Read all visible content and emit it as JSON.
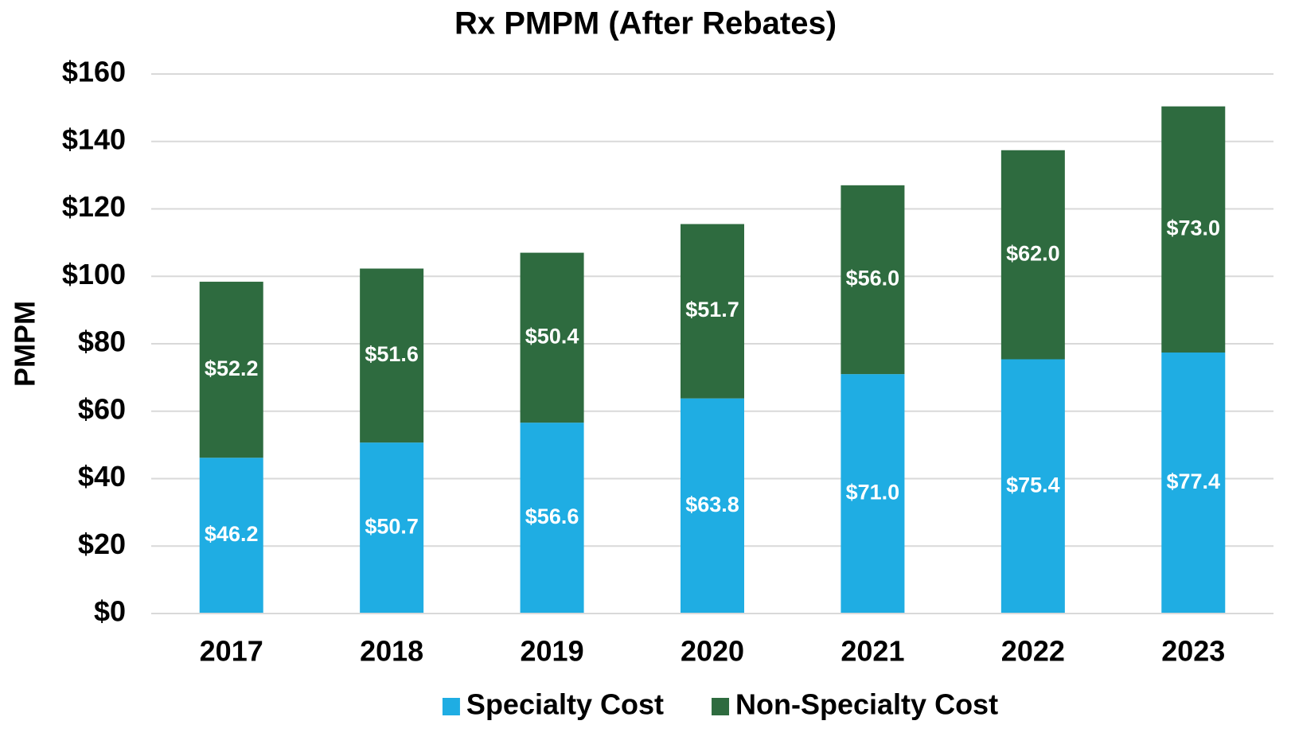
{
  "chart_data": {
    "type": "stacked_bar",
    "title": "Rx PMPM (After Rebates)",
    "ylabel": "PMPM",
    "categories": [
      "2017",
      "2018",
      "2019",
      "2020",
      "2021",
      "2022",
      "2023"
    ],
    "series": [
      {
        "name": "Specialty Cost",
        "color": "#1fade3",
        "values": [
          46.2,
          50.7,
          56.6,
          63.8,
          71.0,
          75.4,
          77.4
        ],
        "value_labels": [
          "$46.2",
          "$50.7",
          "$56.6",
          "$63.8",
          "$71.0",
          "$75.4",
          "$77.4"
        ]
      },
      {
        "name": "Non-Specialty Cost",
        "color": "#2e6b3f",
        "values": [
          52.2,
          51.6,
          50.4,
          51.7,
          56.0,
          62.0,
          73.0
        ],
        "value_labels": [
          "$52.2",
          "$51.6",
          "$50.4",
          "$51.7",
          "$56.0",
          "$62.0",
          "$73.0"
        ]
      }
    ],
    "ylim": [
      0,
      160
    ],
    "yticks": [
      {
        "value": 0,
        "label": "$0"
      },
      {
        "value": 20,
        "label": "$20"
      },
      {
        "value": 40,
        "label": "$40"
      },
      {
        "value": 60,
        "label": "$60"
      },
      {
        "value": 80,
        "label": "$80"
      },
      {
        "value": 100,
        "label": "$100"
      },
      {
        "value": 120,
        "label": "$120"
      },
      {
        "value": 140,
        "label": "$140"
      },
      {
        "value": 160,
        "label": "$160"
      }
    ],
    "grid": true,
    "legend": "bottom"
  }
}
